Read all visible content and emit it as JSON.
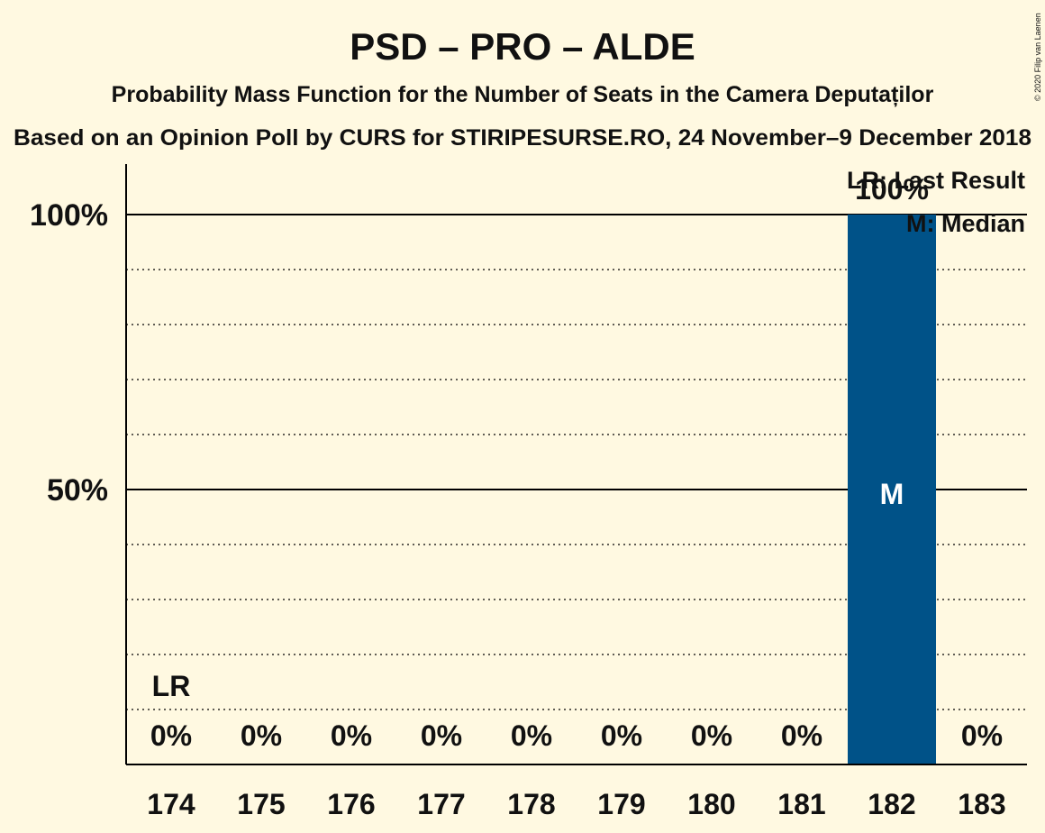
{
  "chart_data": {
    "type": "bar",
    "title": "PSD – PRO – ALDE",
    "subtitle": "Probability Mass Function for the Number of Seats in the Camera Deputaților",
    "source_line": "Based on an Opinion Poll by CURS for STIRIPESURSE.RO, 24 November–9 December 2018",
    "copyright": "© 2020 Filip van Laenen",
    "categories": [
      "174",
      "175",
      "176",
      "177",
      "178",
      "179",
      "180",
      "181",
      "182",
      "183"
    ],
    "values": [
      0,
      0,
      0,
      0,
      0,
      0,
      0,
      0,
      100,
      0
    ],
    "value_labels": [
      "0%",
      "0%",
      "0%",
      "0%",
      "0%",
      "0%",
      "0%",
      "0%",
      "100%",
      "0%"
    ],
    "ylim": [
      0,
      100
    ],
    "yticks": [
      {
        "value": 50,
        "label": "50%"
      },
      {
        "value": 100,
        "label": "100%"
      }
    ],
    "minor_gridlines": [
      10,
      20,
      30,
      40,
      60,
      70,
      80,
      90
    ],
    "grid": true,
    "bar_color": "#005288",
    "background_color": "#FFF9E1",
    "last_result": {
      "category": "174",
      "label": "LR"
    },
    "median": {
      "category": "182",
      "label": "M"
    },
    "legend": {
      "position": "top-right",
      "items": [
        "LR: Last Result",
        "M: Median"
      ]
    }
  }
}
